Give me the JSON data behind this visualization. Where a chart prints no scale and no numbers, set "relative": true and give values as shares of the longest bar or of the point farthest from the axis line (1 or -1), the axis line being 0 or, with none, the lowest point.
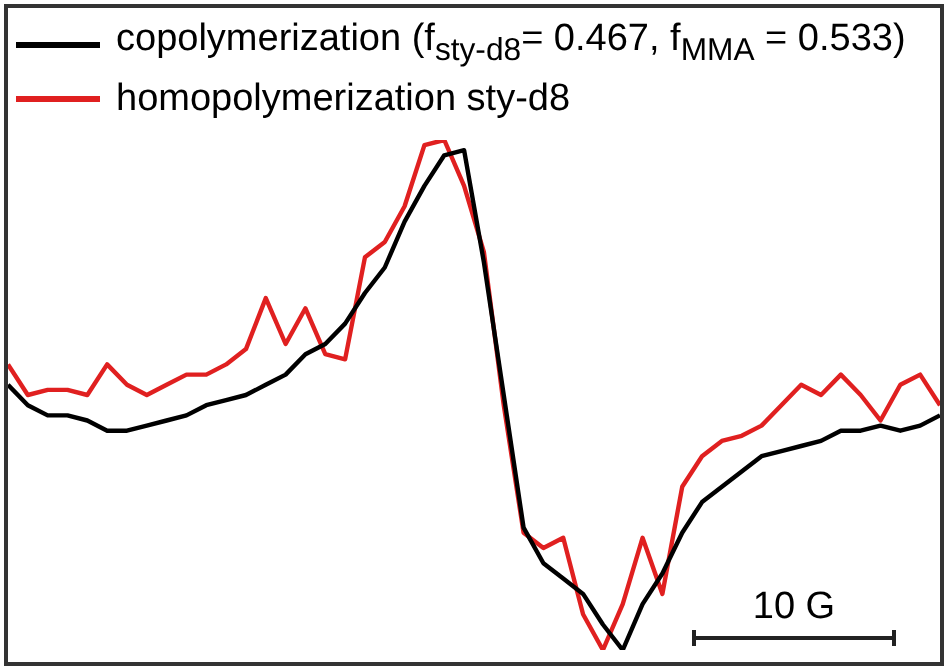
{
  "chart_data": {
    "type": "line",
    "relative": true,
    "legend": "top left",
    "marker": "none",
    "line_style": "solid",
    "categories": [
      null,
      null,
      null,
      null,
      null,
      null,
      null,
      null,
      null,
      null,
      null,
      null,
      null,
      null,
      null,
      null,
      null,
      null,
      null,
      null,
      null,
      null,
      null,
      null,
      null,
      null,
      null,
      null,
      null,
      null,
      null,
      null,
      null,
      null,
      null,
      null,
      null,
      null,
      null,
      null,
      null,
      null,
      null,
      null,
      null,
      null,
      null,
      null
    ],
    "series": [
      {
        "name": "copolymerization (f$_{sty-d8}$= 0.467, f$_{MMA}$ = 0.533)",
        "color": "#000000",
        "values": [
          0.52,
          0.48,
          0.46,
          0.46,
          0.45,
          0.43,
          0.43,
          0.44,
          0.45,
          0.46,
          0.48,
          0.49,
          0.5,
          0.52,
          0.54,
          0.58,
          0.6,
          0.64,
          0.7,
          0.75,
          0.84,
          0.91,
          0.97,
          0.98,
          0.76,
          0.5,
          0.24,
          0.17,
          0.14,
          0.11,
          0.05,
          0,
          0.09,
          0.15,
          0.23,
          0.29,
          0.32,
          0.35,
          0.38,
          0.39,
          0.4,
          0.41,
          0.43,
          0.43,
          0.44,
          0.43,
          0.44,
          0.46
        ]
      },
      {
        "name": "homopolymerization sty-d8",
        "color": "#e02020",
        "values": [
          0.56,
          0.5,
          0.51,
          0.51,
          0.5,
          0.56,
          0.52,
          0.5,
          0.52,
          0.54,
          0.54,
          0.56,
          0.59,
          0.69,
          0.6,
          0.67,
          0.58,
          0.57,
          0.77,
          0.8,
          0.87,
          0.99,
          1,
          0.91,
          0.78,
          0.48,
          0.23,
          0.2,
          0.22,
          0.07,
          0,
          0.09,
          0.22,
          0.11,
          0.32,
          0.38,
          0.41,
          0.42,
          0.44,
          0.48,
          0.52,
          0.5,
          0.54,
          0.5,
          0.45,
          0.52,
          0.54,
          0.48
        ]
      }
    ],
    "annotations": [
      "10 G"
    ]
  }
}
